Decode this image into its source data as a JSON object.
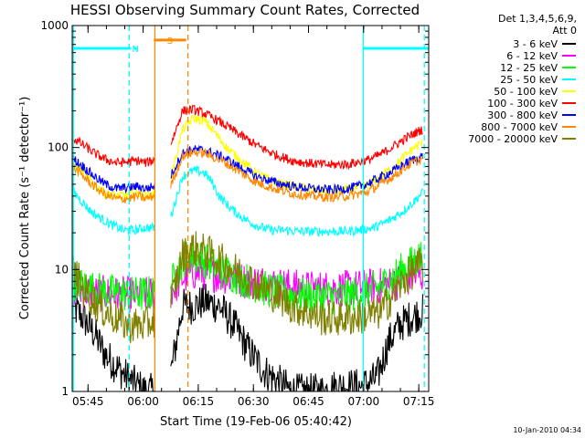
{
  "chart_data": {
    "type": "line",
    "title": "HESSI Observing Summary Count Rates, Corrected",
    "xlabel": "Start Time (19-Feb-06 05:40:42)",
    "ylabel": "Corrected Count Rate (s⁻¹ detector⁻¹)",
    "scale": {
      "y": "log"
    },
    "x_unit": "minutes since 05:40:42",
    "xlim": [
      0,
      97
    ],
    "ylim": [
      1,
      1000
    ],
    "x_ticks": [
      {
        "m": 4.3,
        "label": "05:45"
      },
      {
        "m": 19.3,
        "label": "06:00"
      },
      {
        "m": 34.3,
        "label": "06:15"
      },
      {
        "m": 49.3,
        "label": "06:30"
      },
      {
        "m": 64.3,
        "label": "06:45"
      },
      {
        "m": 79.3,
        "label": "07:00"
      },
      {
        "m": 94.3,
        "label": "07:15"
      }
    ],
    "y_ticks": [
      {
        "v": 1,
        "label": "1"
      },
      {
        "v": 10,
        "label": "10"
      },
      {
        "v": 100,
        "label": "100"
      },
      {
        "v": 1000,
        "label": "1000"
      }
    ],
    "legend": {
      "header": [
        "Det 1,3,4,5,6,9,",
        "Att 0"
      ],
      "placement": "right"
    },
    "series": [
      {
        "name": "3 - 6 keV",
        "color": "#000000",
        "x": [
          0,
          3,
          6,
          9,
          12,
          15,
          18,
          20,
          23,
          26,
          27,
          30,
          33,
          36,
          40,
          44,
          48,
          52,
          56,
          60,
          64,
          68,
          72,
          76,
          79,
          83,
          86,
          89,
          92,
          95
        ],
        "y": [
          5,
          4,
          3,
          2,
          1.6,
          1.3,
          1.1,
          1,
          1,
          1.3,
          1.5,
          5,
          5,
          5.5,
          5,
          3.5,
          2.2,
          1.5,
          1.2,
          1,
          1,
          1,
          1.1,
          1.1,
          1.1,
          1.3,
          2.5,
          3.5,
          4,
          4.5
        ]
      },
      {
        "name": "6 - 12 keV",
        "color": "#ff00ff",
        "x": [
          0,
          5,
          10,
          15,
          20,
          23,
          26,
          27,
          30,
          33,
          36,
          40,
          44,
          48,
          52,
          56,
          60,
          64,
          68,
          72,
          76,
          79,
          83,
          86,
          89,
          92,
          95
        ],
        "y": [
          7,
          6.5,
          6.3,
          6.2,
          6.2,
          6.3,
          6.5,
          6.8,
          8.5,
          9.5,
          9.5,
          9,
          8.5,
          8,
          7.8,
          7.5,
          7.2,
          7,
          7,
          7,
          7,
          7.2,
          7.3,
          7.5,
          8,
          8.5,
          9
        ]
      },
      {
        "name": "12 - 25 keV",
        "color": "#00ff00",
        "x": [
          0,
          5,
          10,
          15,
          20,
          23,
          26,
          27,
          30,
          33,
          36,
          40,
          44,
          48,
          52,
          56,
          60,
          64,
          68,
          72,
          76,
          79,
          83,
          86,
          89,
          92,
          95
        ],
        "y": [
          8,
          7,
          6.5,
          6.3,
          6.3,
          6.5,
          7,
          7.5,
          12,
          13,
          12,
          10,
          9,
          8,
          7,
          6.5,
          6.2,
          6,
          6,
          6,
          6.2,
          6.5,
          7,
          8,
          9.5,
          11,
          13
        ]
      },
      {
        "name": "25 - 50 keV",
        "color": "#00ffff",
        "x": [
          0,
          2,
          5,
          8,
          11,
          14,
          17,
          20,
          22,
          24,
          26,
          27,
          30,
          33,
          36,
          38,
          40,
          43,
          46,
          50,
          54,
          58,
          62,
          66,
          70,
          74,
          78,
          82,
          86,
          90,
          93,
          95
        ],
        "y": [
          45,
          38,
          30,
          26,
          23,
          21,
          21,
          22,
          22,
          24,
          26,
          28,
          58,
          65,
          62,
          52,
          40,
          32,
          27,
          23,
          21,
          21,
          20.5,
          20.5,
          20.5,
          20.5,
          21,
          22,
          25,
          30,
          36,
          42
        ]
      },
      {
        "name": "50 - 100 keV",
        "color": "#ffff00",
        "x": [
          0,
          3,
          6,
          9,
          12,
          15,
          18,
          21,
          24,
          26,
          27,
          30,
          33,
          36,
          39,
          42,
          46,
          50,
          55,
          60,
          65,
          70,
          75,
          80,
          84,
          88,
          91,
          93,
          95
        ],
        "y": [
          75,
          62,
          50,
          42,
          40,
          41,
          42,
          40,
          44,
          55,
          58,
          140,
          175,
          165,
          130,
          100,
          78,
          62,
          52,
          48,
          45,
          44,
          45,
          48,
          58,
          72,
          88,
          100,
          108
        ]
      },
      {
        "name": "100 - 300 keV",
        "color": "#ff0000",
        "x": [
          0,
          3,
          6,
          9,
          12,
          15,
          18,
          20,
          23,
          26,
          27,
          30,
          33,
          36,
          39,
          42,
          46,
          50,
          55,
          60,
          65,
          70,
          75,
          80,
          84,
          88,
          91,
          93,
          95
        ],
        "y": [
          120,
          105,
          90,
          80,
          75,
          76,
          78,
          75,
          80,
          100,
          110,
          200,
          205,
          190,
          170,
          150,
          125,
          105,
          88,
          78,
          74,
          72,
          73,
          78,
          88,
          105,
          120,
          130,
          140
        ]
      },
      {
        "name": "300 - 800 keV",
        "color": "#0000ff",
        "x": [
          0,
          3,
          6,
          9,
          12,
          15,
          18,
          20,
          23,
          26,
          27,
          30,
          33,
          36,
          39,
          42,
          46,
          50,
          55,
          60,
          65,
          70,
          75,
          80,
          84,
          88,
          91,
          93,
          95
        ],
        "y": [
          82,
          70,
          58,
          50,
          46,
          47,
          48,
          46,
          49,
          57,
          60,
          90,
          96,
          95,
          88,
          80,
          68,
          58,
          52,
          48,
          46,
          45,
          46,
          50,
          57,
          66,
          75,
          80,
          84
        ]
      },
      {
        "name": "800 - 7000 keV",
        "color": "#ff8800",
        "x": [
          0,
          3,
          6,
          9,
          12,
          15,
          18,
          20,
          23,
          26,
          27,
          30,
          33,
          36,
          39,
          42,
          46,
          50,
          55,
          60,
          65,
          70,
          75,
          80,
          84,
          88,
          91,
          93,
          95
        ],
        "y": [
          70,
          58,
          48,
          41,
          38,
          38,
          40,
          38,
          41,
          48,
          50,
          85,
          92,
          90,
          82,
          74,
          62,
          52,
          46,
          42,
          40,
          39,
          40,
          43,
          50,
          60,
          70,
          76,
          80
        ]
      },
      {
        "name": "7000 - 20000 keV",
        "color": "#808000",
        "x": [
          0,
          3,
          6,
          9,
          12,
          15,
          18,
          20,
          23,
          26,
          27,
          30,
          33,
          36,
          40,
          44,
          48,
          52,
          56,
          60,
          64,
          68,
          72,
          76,
          80,
          84,
          87,
          90,
          93,
          95
        ],
        "y": [
          10,
          7,
          5.5,
          4.5,
          4,
          3.5,
          3.5,
          3.5,
          4,
          5,
          5.5,
          13,
          15,
          14,
          12,
          10,
          8.5,
          7,
          6,
          5,
          4.5,
          4,
          4,
          4,
          4.2,
          4.5,
          6,
          8,
          10,
          11
        ]
      }
    ],
    "segments": [
      {
        "label": "",
        "color": "#00ffff",
        "x": [
          0,
          16
        ],
        "y": 650
      },
      {
        "label": "N",
        "color": "#00ffff",
        "x": [
          16.8,
          17.6
        ],
        "y": 650
      },
      {
        "label": "S",
        "color": "#ff8800",
        "x": [
          22.2,
          31
        ],
        "y": 760
      },
      {
        "label": "",
        "color": "#00ffff",
        "x": [
          79,
          97
        ],
        "y": 650
      }
    ],
    "vlines": [
      {
        "x": 0.3,
        "color": "#00ffff",
        "dash": false
      },
      {
        "x": 15.5,
        "color": "#00ffff",
        "dash": true
      },
      {
        "x": 22.5,
        "color": "#ff8800",
        "dash": false
      },
      {
        "x": 31.5,
        "color": "#ff8800",
        "dash": true
      },
      {
        "x": 79.2,
        "color": "#00ffff",
        "dash": false
      },
      {
        "x": 95.8,
        "color": "#00ffff",
        "dash": true
      }
    ],
    "footer": "10-Jan-2010 04:34"
  }
}
